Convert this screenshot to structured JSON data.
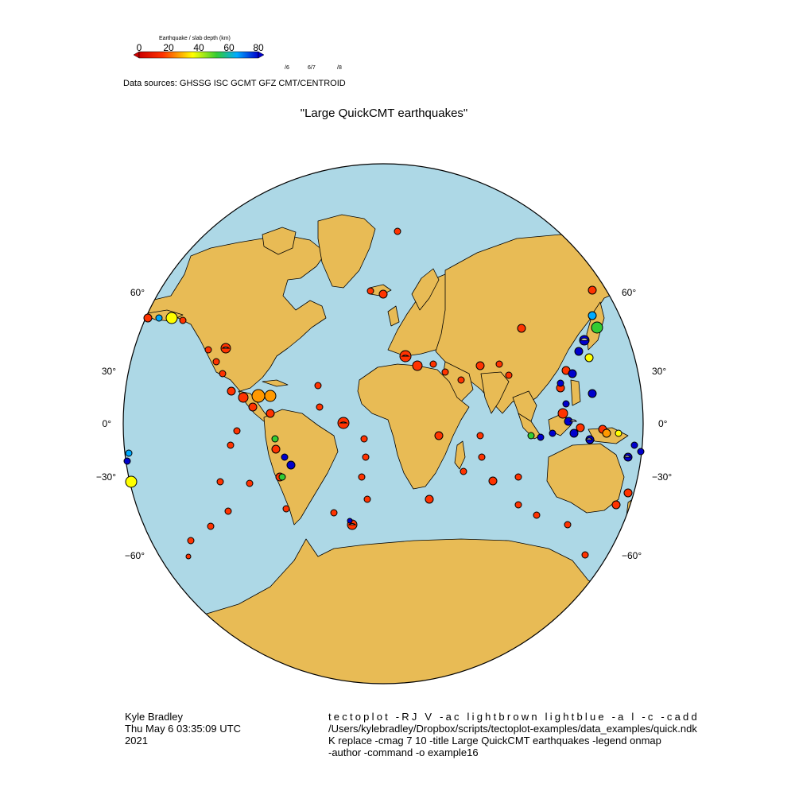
{
  "colorbar": {
    "title": "Earthquake / slab depth (km)",
    "ticks": [
      "0",
      "20",
      "40",
      "60",
      "80"
    ],
    "stops": [
      "#cc0000",
      "#ff3300",
      "#ff9900",
      "#ffff00",
      "#33cc33",
      "#00aaff",
      "#0000cc"
    ]
  },
  "magnitude_labels": [
    "/6",
    "6/7",
    "/8"
  ],
  "sources": "Data sources: GHSSG ISC GCMT GFZ CMT/CENTROID",
  "map": {
    "title": "\"Large QuickCMT earthquakes\"",
    "ocean_color": "#add8e6",
    "land_color": "#e8bb55",
    "lat_labels_left": [
      "60°",
      "30°",
      "0°",
      "−30°",
      "−60°"
    ],
    "lat_labels_right": [
      "60°",
      "30°",
      "0°",
      "−30°",
      "−60°"
    ]
  },
  "author": {
    "name": "Kyle Bradley",
    "date_line1": "Thu May 6 03:35:09 UTC",
    "date_line2": "2021"
  },
  "command": {
    "line1": "tectoplot -RJ V -ac lightbrown lightblue -a l -c -cadd",
    "line2": "/Users/kylebradley/Dropbox/scripts/tectoplot-examples/data_examples/quick.ndk",
    "line3": "K replace -cmag 7 10 -title Large QuickCMT earthquakes -legend onmap",
    "line4": "-author -command -o example16"
  }
}
